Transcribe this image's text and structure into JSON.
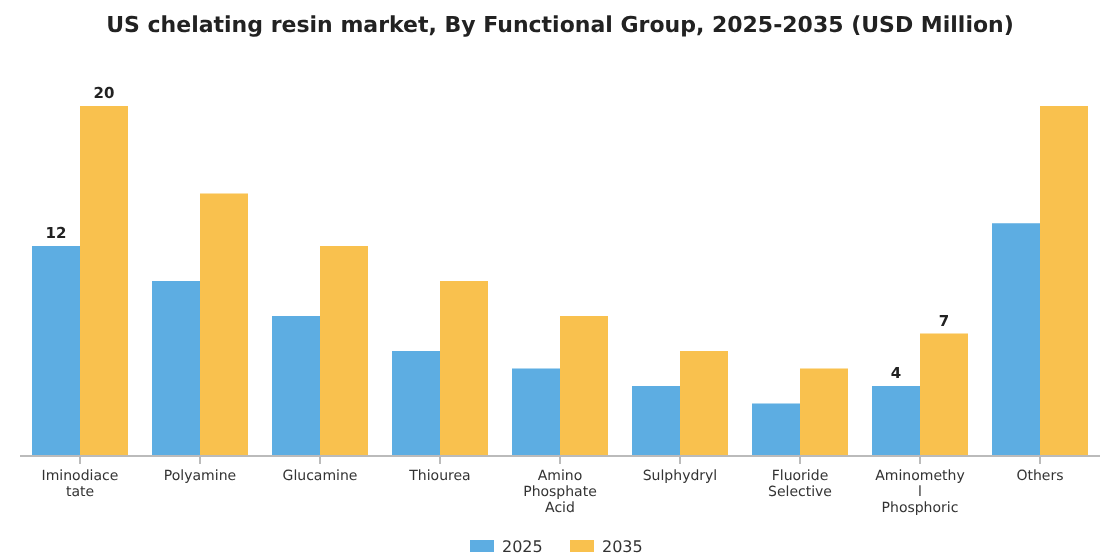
{
  "chart_data": {
    "type": "bar",
    "title": "US chelating resin market, By Functional Group, 2025-2035 (USD Million)",
    "categories": [
      "Iminodiacetate",
      "Polyamine",
      "Glucamine",
      "Thiourea",
      "Amino Phosphate Acid",
      "Sulphydryl",
      "Fluoride Selective",
      "Aminomethyl Phosphoric",
      "Others"
    ],
    "series": [
      {
        "name": "2025",
        "color": "#5dade2",
        "values": [
          12,
          10,
          8,
          6,
          5,
          4,
          3,
          4,
          13.3
        ],
        "value_labels": [
          "12",
          null,
          null,
          null,
          null,
          null,
          null,
          "4",
          null
        ]
      },
      {
        "name": "2035",
        "color": "#f9c14e",
        "values": [
          20,
          15,
          12,
          10,
          8,
          6,
          5,
          7,
          20
        ],
        "value_labels": [
          "20",
          null,
          null,
          null,
          null,
          null,
          null,
          "7",
          null
        ]
      }
    ],
    "ylim": [
      0,
      20
    ],
    "tick_labels": "x",
    "legend": "bottom",
    "grid": false
  }
}
